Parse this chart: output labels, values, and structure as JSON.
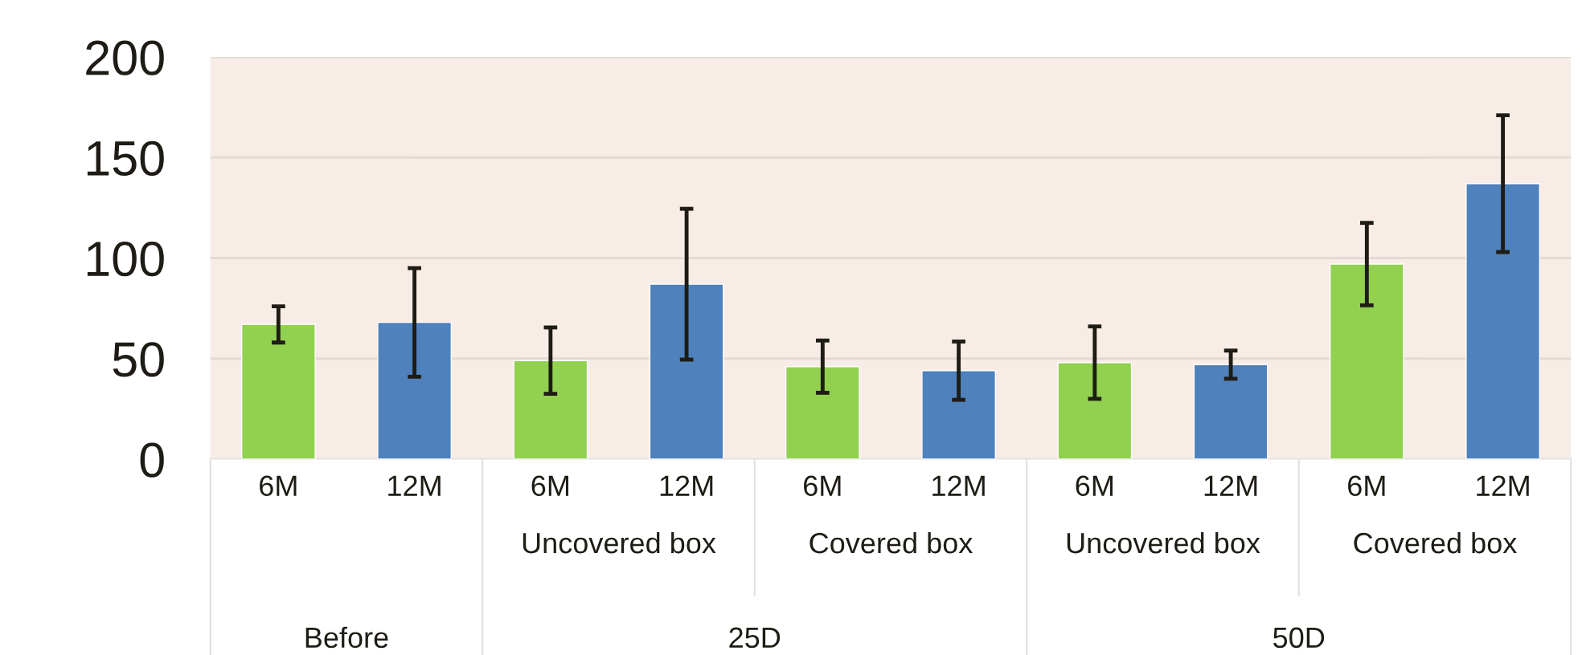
{
  "chart_data": {
    "type": "bar",
    "categories": [
      "6M",
      "12M",
      "6M",
      "12M",
      "6M",
      "12M",
      "6M",
      "12M",
      "6M",
      "12M"
    ],
    "values": [
      67,
      68,
      49,
      87,
      46,
      44,
      48,
      47,
      97,
      137
    ],
    "errors": [
      9,
      27,
      16.5,
      37.5,
      13,
      14.5,
      18,
      7,
      20.5,
      34
    ],
    "colors": [
      "#92d050",
      "#4f81bd",
      "#92d050",
      "#4f81bd",
      "#92d050",
      "#4f81bd",
      "#92d050",
      "#4f81bd",
      "#92d050",
      "#4f81bd"
    ],
    "annotations": [
      "Uncovered box",
      "Covered box",
      "Uncovered box",
      "Covered box",
      "Before",
      "25D",
      "50D"
    ],
    "ylim": [
      0,
      200
    ],
    "yticks": [
      0,
      50,
      100,
      150,
      200
    ],
    "grid": "y"
  }
}
